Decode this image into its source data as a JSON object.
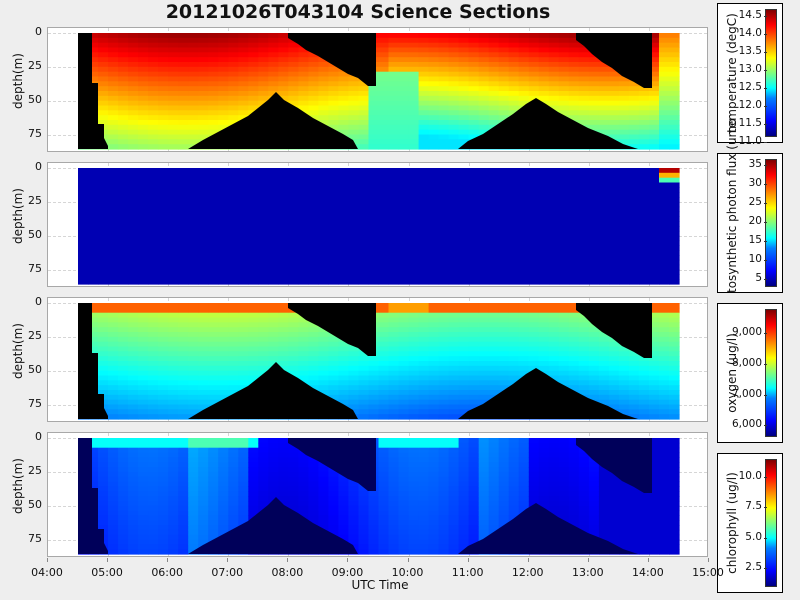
{
  "title": "20121026T043104 Science Sections",
  "x_axis": {
    "title": "UTC Time",
    "ticks": [
      "04:00",
      "05:00",
      "06:00",
      "07:00",
      "08:00",
      "09:00",
      "10:00",
      "11:00",
      "12:00",
      "13:00",
      "14:00",
      "15:00"
    ]
  },
  "y_axis": {
    "title": "depth(m)",
    "ticks": [
      "0",
      "25",
      "50",
      "75"
    ]
  },
  "panels": [
    {
      "name": "temperature",
      "colorbar_label": "temperature (degC)",
      "colorbar_ticks": [
        "14.5",
        "14.0",
        "13.5",
        "13.0",
        "12.5",
        "12.0",
        "11.5",
        "11.0"
      ]
    },
    {
      "name": "photosynthetic-photon-flux",
      "colorbar_label": "tosynthetic photon flux (umo",
      "colorbar_ticks": [
        "35",
        "30",
        "25",
        "20",
        "15",
        "10",
        "5"
      ]
    },
    {
      "name": "oxygen",
      "colorbar_label": "oxygen (ug/l)",
      "colorbar_ticks": [
        "9,000",
        "8,000",
        "7,000",
        "6,000"
      ]
    },
    {
      "name": "chlorophyll",
      "colorbar_label": "chlorophyll (ug/l)",
      "colorbar_ticks": [
        "10.0",
        "7.5",
        "5.0",
        "2.5"
      ]
    }
  ],
  "chart_data": [
    {
      "type": "heatmap",
      "title": "20121026T043104 Science Sections",
      "xlabel": "UTC Time",
      "ylabel": "depth(m)",
      "xlim": [
        "04:00",
        "15:00"
      ],
      "ylim": [
        85,
        0
      ],
      "y_ticks": [
        0,
        25,
        50,
        75
      ],
      "colorbar": {
        "label": "temperature (degC)",
        "range": [
          10.8,
          14.6
        ],
        "ticks": [
          11.0,
          11.5,
          12.0,
          12.5,
          13.0,
          13.5,
          14.0,
          14.5
        ]
      },
      "data_extent": {
        "start": "04:30",
        "end": "14:37"
      },
      "description": "Warm (13.5-14.5) near surface, cooling to ~13.0 at depth in early hours; later casts show ~12-12.5 at depth. Black masks indicate no data (sawtooth glider profile).",
      "grid": true
    },
    {
      "type": "heatmap",
      "xlabel": "UTC Time",
      "ylabel": "depth(m)",
      "colorbar": {
        "label": "photosynthetic photon flux (umol)",
        "range": [
          0,
          36
        ],
        "ticks": [
          5,
          10,
          15,
          20,
          25,
          30,
          35
        ]
      },
      "description": "Near zero everywhere except a thin surface band (~35) at about 14:15-14:37.",
      "grid": true
    },
    {
      "type": "heatmap",
      "xlabel": "UTC Time",
      "ylabel": "depth(m)",
      "colorbar": {
        "label": "oxygen (ug/l)",
        "range": [
          5300,
          9700
        ],
        "ticks": [
          6000,
          7000,
          8000,
          9000
        ]
      },
      "description": "High oxygen (8,500-9,500) at surface, decreasing to ~6,500-7,000 at mid depth and ~6,000 at bottom.",
      "grid": true
    },
    {
      "type": "heatmap",
      "xlabel": "UTC Time",
      "ylabel": "depth(m)",
      "colorbar": {
        "label": "chlorophyll (ug/l)",
        "range": [
          0.5,
          11.2
        ],
        "ticks": [
          2.5,
          5.0,
          7.5,
          10.0
        ]
      },
      "description": "Mostly low (0.5-2.5), slight maxima (~3-5) near surface around 05:00-06:00, 09:30-10:30 and 14:15.",
      "grid": true
    }
  ]
}
